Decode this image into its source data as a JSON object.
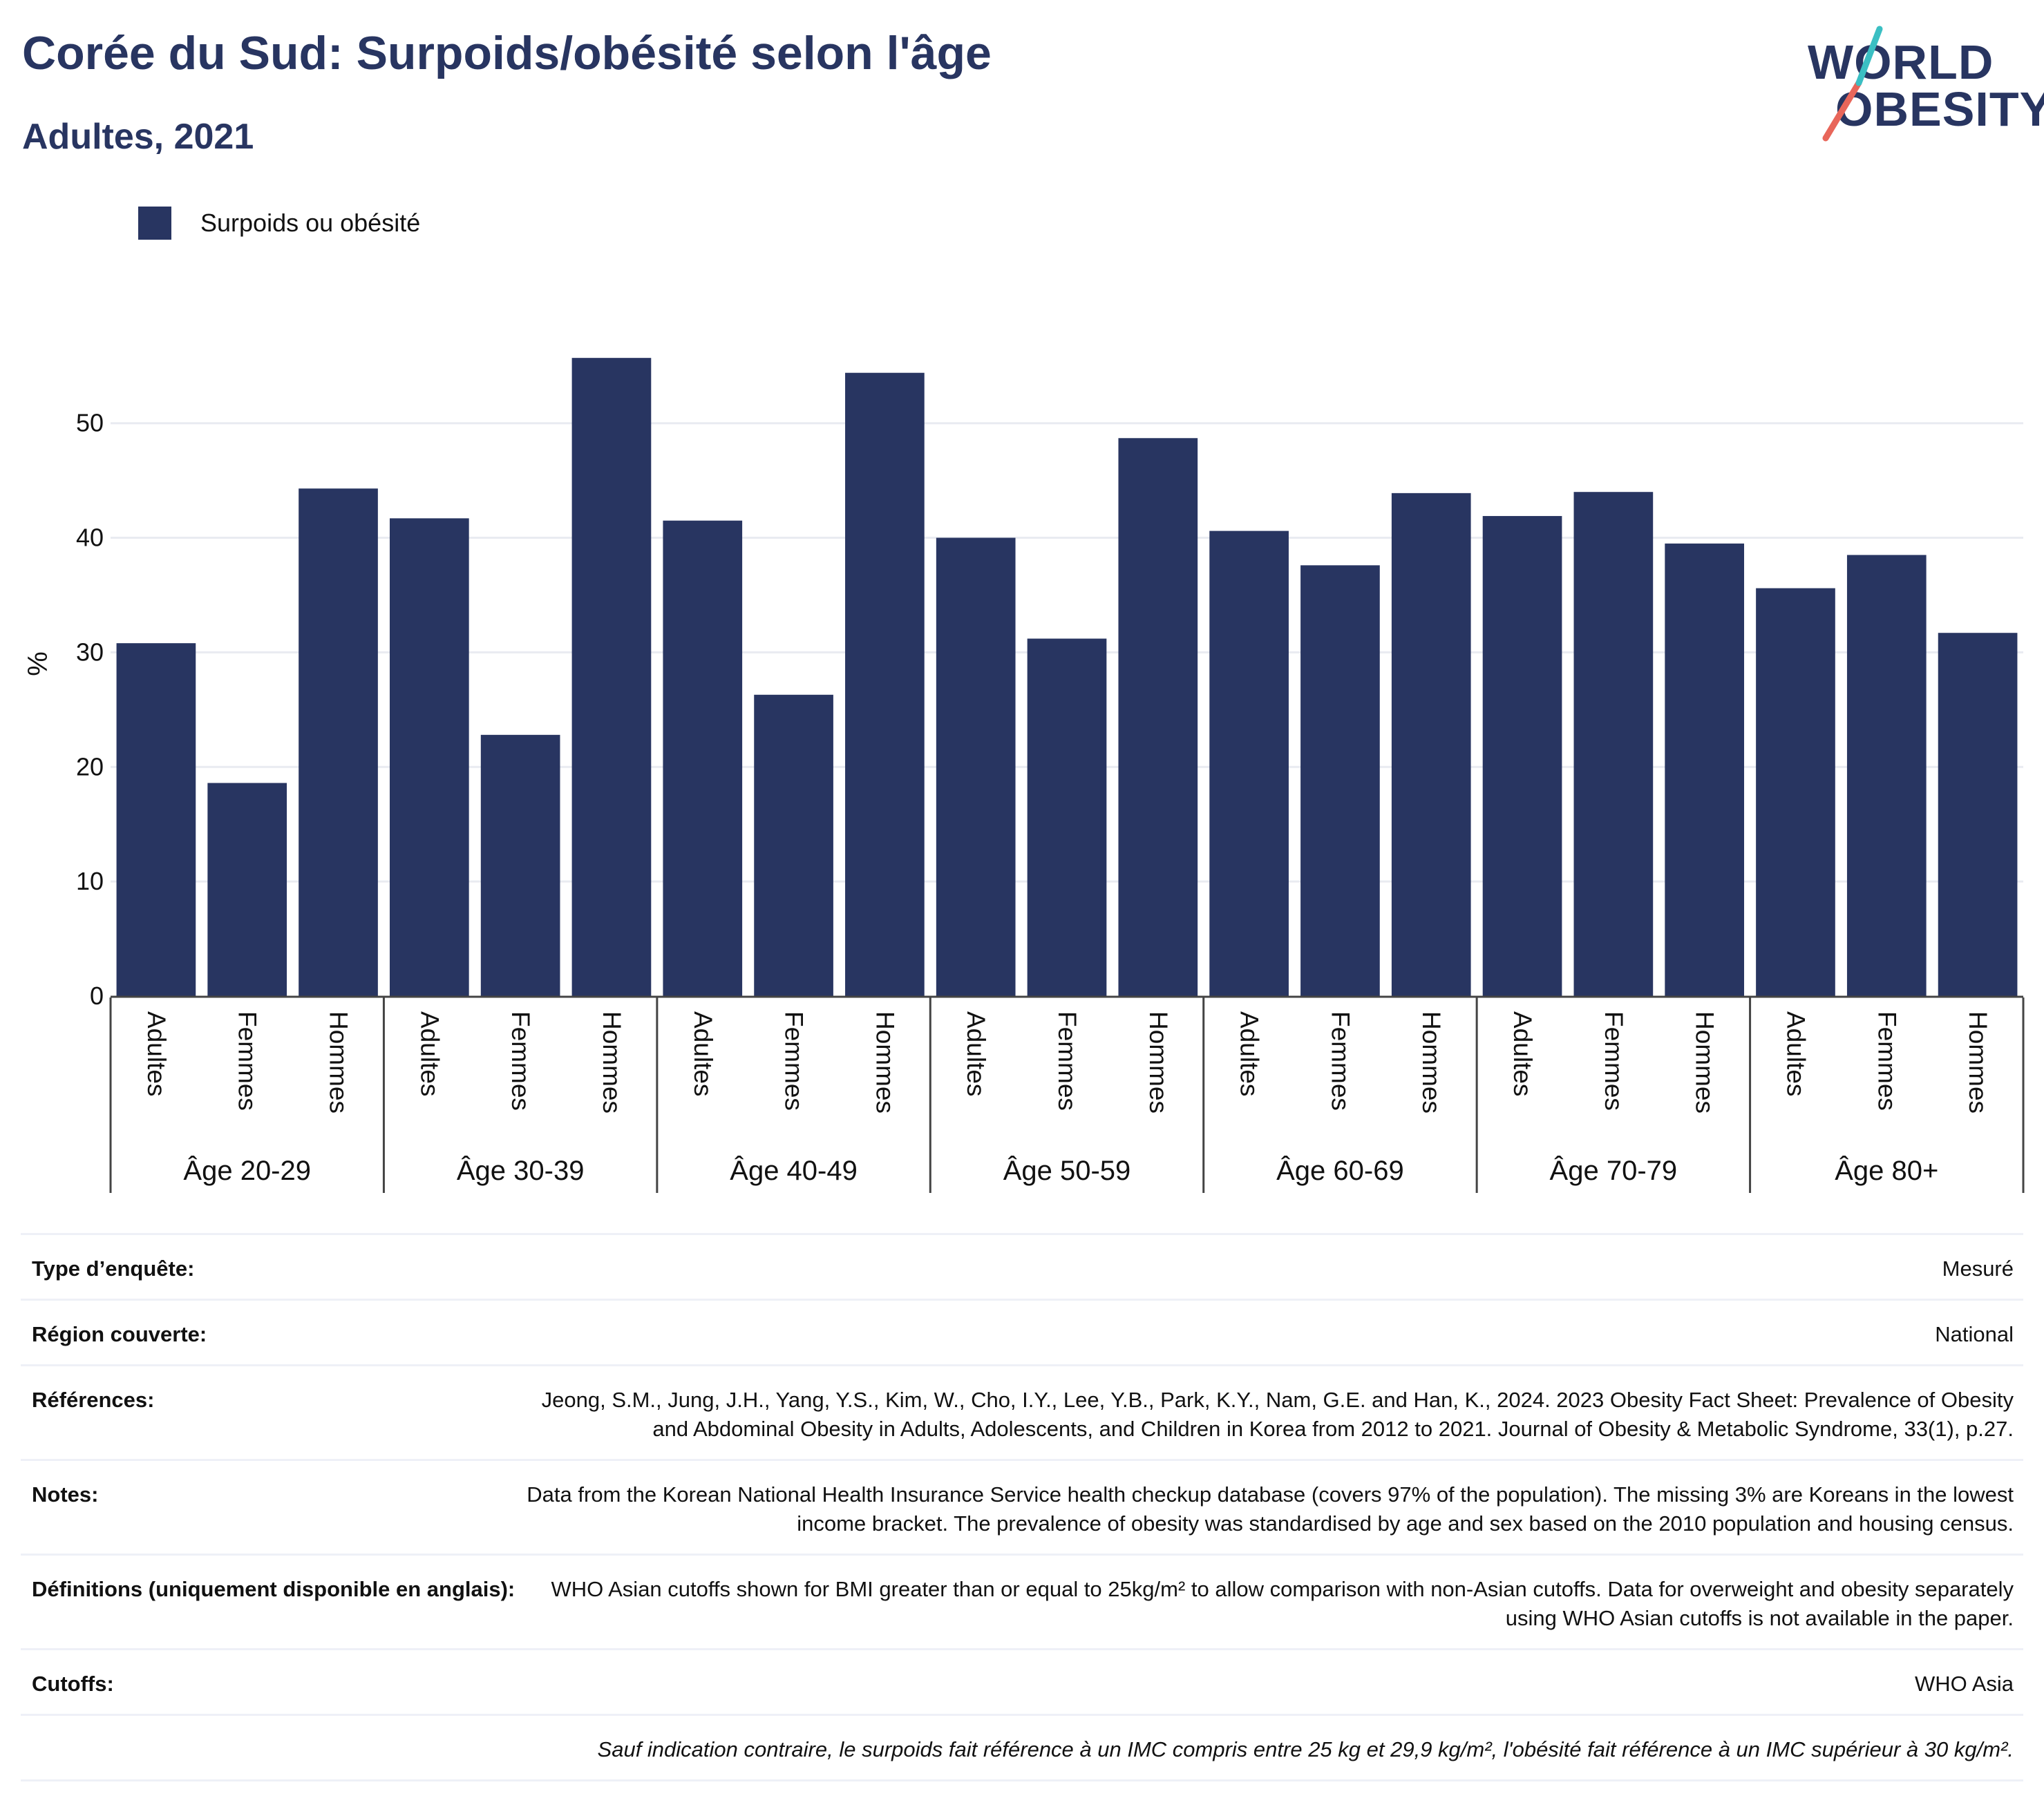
{
  "header": {
    "title": "Corée du Sud: Surpoids/obésité selon l'âge",
    "subtitle": "Adultes, 2021"
  },
  "logo": {
    "line1": "WORLD",
    "line2": "OBESITY"
  },
  "legend": {
    "label": "Surpoids ou obésité",
    "color": "#283561"
  },
  "chart_data": {
    "type": "bar",
    "ylabel": "%",
    "ylim": [
      0,
      58
    ],
    "yticks": [
      0,
      10,
      20,
      30,
      40,
      50
    ],
    "grid": true,
    "legend_position": "top-left",
    "groups": [
      "Âge 20-29",
      "Âge 30-39",
      "Âge 40-49",
      "Âge 50-59",
      "Âge 60-69",
      "Âge 70-79",
      "Âge 80+"
    ],
    "subcategories": [
      "Adultes",
      "Femmes",
      "Hommes"
    ],
    "series": [
      {
        "name": "Surpoids ou obésité",
        "color": "#283561",
        "values": [
          30.8,
          18.6,
          44.3,
          41.7,
          22.8,
          55.7,
          41.5,
          26.3,
          54.4,
          40.0,
          31.2,
          48.7,
          40.6,
          37.6,
          43.9,
          41.9,
          44.0,
          39.5,
          35.6,
          38.5,
          31.7
        ]
      }
    ]
  },
  "meta": {
    "rows": [
      {
        "key": "Type d’enquête:",
        "value": "Mesuré"
      },
      {
        "key": "Région couverte:",
        "value": "National"
      },
      {
        "key": "Références:",
        "value": "Jeong, S.M., Jung, J.H., Yang, Y.S., Kim, W., Cho, I.Y., Lee, Y.B., Park, K.Y., Nam, G.E. and Han, K., 2024. 2023 Obesity Fact Sheet: Prevalence of Obesity and Abdominal Obesity in Adults, Adolescents, and Children in Korea from 2012 to 2021. Journal of Obesity & Metabolic Syndrome, 33(1), p.27."
      },
      {
        "key": "Notes:",
        "value": "Data from the Korean National Health Insurance Service health checkup database (covers 97% of the population). The missing 3% are Koreans in the lowest income bracket. The prevalence of obesity was standardised by age and sex based on the 2010 population and housing census."
      },
      {
        "key": "Définitions (uniquement disponible en anglais):",
        "value": "WHO Asian cutoffs shown for BMI greater than or equal to 25kg/m² to allow comparison with non-Asian cutoffs. Data for overweight and obesity separately using WHO Asian cutoffs is not available in the paper."
      },
      {
        "key": "Cutoffs:",
        "value": "WHO Asia"
      }
    ],
    "footnote": "Sauf indication contraire, le surpoids fait référence à un IMC compris entre 25 kg et 29,9 kg/m², l'obésité fait référence à un IMC supérieur à 30 kg/m²."
  }
}
